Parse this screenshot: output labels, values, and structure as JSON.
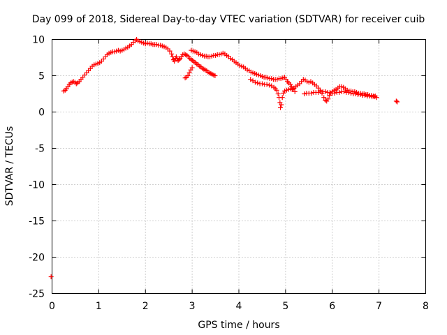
{
  "chart_data": {
    "type": "scatter",
    "title": "Day 099 of 2018, Sidereal Day-to-day VTEC variation (SDTVAR) for receiver cuib",
    "xlabel": "GPS time / hours",
    "ylabel": "SDTVAR / TECUs",
    "xlim": [
      0,
      8
    ],
    "ylim": [
      -25,
      10
    ],
    "xticks": [
      0,
      1,
      2,
      3,
      4,
      5,
      6,
      7,
      8
    ],
    "yticks": [
      -25,
      -20,
      -15,
      -10,
      -5,
      0,
      5,
      10
    ],
    "xtick_labels": [
      "0",
      "1",
      "2",
      "3",
      "4",
      "5",
      "6",
      "7",
      "8"
    ],
    "ytick_labels": [
      "-25",
      "-20",
      "-15",
      "-10",
      "-5",
      "0",
      "5",
      "10"
    ],
    "grid": true,
    "marker": "+",
    "color": "#ff0000",
    "series": [
      {
        "name": "SDTVAR",
        "points": [
          [
            -0.02,
            -22.7
          ],
          [
            0.25,
            2.9
          ],
          [
            0.28,
            3.0
          ],
          [
            0.31,
            3.2
          ],
          [
            0.34,
            3.5
          ],
          [
            0.37,
            3.8
          ],
          [
            0.4,
            4.0
          ],
          [
            0.43,
            4.1
          ],
          [
            0.46,
            4.2
          ],
          [
            0.49,
            4.1
          ],
          [
            0.52,
            3.9
          ],
          [
            0.55,
            4.0
          ],
          [
            0.58,
            4.2
          ],
          [
            0.62,
            4.5
          ],
          [
            0.66,
            4.8
          ],
          [
            0.7,
            5.1
          ],
          [
            0.74,
            5.4
          ],
          [
            0.78,
            5.7
          ],
          [
            0.82,
            6.0
          ],
          [
            0.86,
            6.3
          ],
          [
            0.9,
            6.5
          ],
          [
            0.94,
            6.6
          ],
          [
            0.98,
            6.7
          ],
          [
            1.02,
            6.8
          ],
          [
            1.06,
            7.0
          ],
          [
            1.1,
            7.3
          ],
          [
            1.14,
            7.6
          ],
          [
            1.18,
            7.9
          ],
          [
            1.22,
            8.1
          ],
          [
            1.26,
            8.2
          ],
          [
            1.3,
            8.3
          ],
          [
            1.34,
            8.3
          ],
          [
            1.38,
            8.4
          ],
          [
            1.42,
            8.5
          ],
          [
            1.46,
            8.4
          ],
          [
            1.5,
            8.5
          ],
          [
            1.54,
            8.6
          ],
          [
            1.58,
            8.8
          ],
          [
            1.62,
            8.9
          ],
          [
            1.66,
            9.1
          ],
          [
            1.7,
            9.3
          ],
          [
            1.74,
            9.6
          ],
          [
            1.78,
            9.8
          ],
          [
            1.81,
            10.0
          ],
          [
            1.84,
            9.8
          ],
          [
            1.88,
            9.7
          ],
          [
            1.92,
            9.6
          ],
          [
            1.96,
            9.5
          ],
          [
            2.0,
            9.4
          ],
          [
            2.04,
            9.5
          ],
          [
            2.08,
            9.4
          ],
          [
            2.12,
            9.4
          ],
          [
            2.16,
            9.3
          ],
          [
            2.2,
            9.3
          ],
          [
            2.24,
            9.3
          ],
          [
            2.28,
            9.2
          ],
          [
            2.32,
            9.2
          ],
          [
            2.36,
            9.1
          ],
          [
            2.4,
            9.0
          ],
          [
            2.44,
            8.9
          ],
          [
            2.48,
            8.7
          ],
          [
            2.52,
            8.4
          ],
          [
            2.56,
            8.0
          ],
          [
            2.58,
            7.6
          ],
          [
            2.6,
            7.2
          ],
          [
            2.62,
            7.0
          ],
          [
            2.64,
            7.4
          ],
          [
            2.66,
            7.6
          ],
          [
            2.68,
            7.3
          ],
          [
            2.7,
            7.1
          ],
          [
            2.72,
            7.2
          ],
          [
            2.74,
            7.4
          ],
          [
            2.77,
            7.6
          ],
          [
            2.8,
            7.9
          ],
          [
            2.83,
            8.0
          ],
          [
            2.86,
            7.9
          ],
          [
            2.89,
            7.8
          ],
          [
            2.92,
            7.6
          ],
          [
            2.95,
            7.4
          ],
          [
            2.98,
            7.2
          ],
          [
            3.01,
            7.1
          ],
          [
            3.04,
            6.9
          ],
          [
            3.07,
            6.8
          ],
          [
            3.1,
            6.6
          ],
          [
            3.13,
            6.5
          ],
          [
            3.16,
            6.3
          ],
          [
            3.19,
            6.2
          ],
          [
            3.22,
            6.0
          ],
          [
            3.25,
            5.9
          ],
          [
            3.28,
            5.8
          ],
          [
            3.31,
            5.7
          ],
          [
            3.34,
            5.5
          ],
          [
            3.37,
            5.4
          ],
          [
            3.4,
            5.3
          ],
          [
            3.43,
            5.2
          ],
          [
            3.46,
            5.1
          ],
          [
            3.49,
            5.0
          ],
          [
            2.85,
            4.7
          ],
          [
            2.88,
            4.8
          ],
          [
            2.91,
            5.0
          ],
          [
            2.94,
            5.4
          ],
          [
            2.97,
            5.8
          ],
          [
            3.0,
            6.1
          ],
          [
            2.98,
            8.5
          ],
          [
            3.02,
            8.4
          ],
          [
            3.06,
            8.3
          ],
          [
            3.1,
            8.2
          ],
          [
            3.14,
            8.0
          ],
          [
            3.18,
            7.9
          ],
          [
            3.22,
            7.8
          ],
          [
            3.26,
            7.7
          ],
          [
            3.3,
            7.7
          ],
          [
            3.34,
            7.6
          ],
          [
            3.38,
            7.6
          ],
          [
            3.42,
            7.7
          ],
          [
            3.46,
            7.8
          ],
          [
            3.5,
            7.8
          ],
          [
            3.54,
            7.9
          ],
          [
            3.58,
            7.9
          ],
          [
            3.62,
            8.0
          ],
          [
            3.66,
            8.1
          ],
          [
            3.7,
            8.0
          ],
          [
            3.74,
            7.8
          ],
          [
            3.78,
            7.6
          ],
          [
            3.82,
            7.4
          ],
          [
            3.86,
            7.2
          ],
          [
            3.9,
            7.0
          ],
          [
            3.94,
            6.8
          ],
          [
            3.98,
            6.6
          ],
          [
            4.02,
            6.4
          ],
          [
            4.06,
            6.3
          ],
          [
            4.1,
            6.2
          ],
          [
            4.14,
            6.0
          ],
          [
            4.18,
            5.8
          ],
          [
            4.22,
            5.7
          ],
          [
            4.26,
            5.5
          ],
          [
            4.3,
            5.4
          ],
          [
            4.34,
            5.3
          ],
          [
            4.38,
            5.2
          ],
          [
            4.42,
            5.1
          ],
          [
            4.46,
            5.0
          ],
          [
            4.5,
            4.9
          ],
          [
            4.54,
            4.8
          ],
          [
            4.58,
            4.8
          ],
          [
            4.62,
            4.7
          ],
          [
            4.66,
            4.6
          ],
          [
            4.7,
            4.6
          ],
          [
            4.74,
            4.5
          ],
          [
            4.78,
            4.5
          ],
          [
            4.82,
            4.5
          ],
          [
            4.86,
            4.6
          ],
          [
            4.9,
            4.6
          ],
          [
            4.94,
            4.7
          ],
          [
            4.98,
            4.8
          ],
          [
            5.01,
            4.5
          ],
          [
            5.04,
            4.2
          ],
          [
            5.07,
            4.0
          ],
          [
            5.1,
            3.8
          ],
          [
            5.13,
            3.5
          ],
          [
            5.16,
            3.2
          ],
          [
            5.2,
            2.8
          ],
          [
            4.25,
            4.5
          ],
          [
            4.3,
            4.3
          ],
          [
            4.35,
            4.1
          ],
          [
            4.4,
            4.0
          ],
          [
            4.45,
            3.9
          ],
          [
            4.5,
            3.9
          ],
          [
            4.55,
            3.8
          ],
          [
            4.6,
            3.8
          ],
          [
            4.65,
            3.7
          ],
          [
            4.7,
            3.6
          ],
          [
            4.75,
            3.4
          ],
          [
            4.78,
            3.2
          ],
          [
            4.81,
            3.0
          ],
          [
            4.84,
            2.5
          ],
          [
            4.86,
            2.0
          ],
          [
            4.88,
            1.3
          ],
          [
            4.89,
            0.6
          ],
          [
            4.91,
            1.0
          ],
          [
            4.93,
            2.0
          ],
          [
            4.95,
            2.6
          ],
          [
            4.98,
            2.9
          ],
          [
            5.02,
            3.0
          ],
          [
            5.06,
            3.1
          ],
          [
            5.1,
            3.2
          ],
          [
            5.14,
            3.1
          ],
          [
            5.18,
            3.3
          ],
          [
            5.22,
            3.5
          ],
          [
            5.26,
            3.7
          ],
          [
            5.3,
            3.9
          ],
          [
            5.34,
            4.2
          ],
          [
            5.38,
            4.5
          ],
          [
            5.42,
            4.4
          ],
          [
            5.46,
            4.2
          ],
          [
            5.5,
            4.1
          ],
          [
            5.54,
            4.2
          ],
          [
            5.58,
            4.0
          ],
          [
            5.62,
            3.8
          ],
          [
            5.66,
            3.6
          ],
          [
            5.7,
            3.3
          ],
          [
            5.74,
            3.0
          ],
          [
            5.78,
            2.6
          ],
          [
            5.82,
            2.0
          ],
          [
            5.85,
            1.6
          ],
          [
            5.88,
            1.5
          ],
          [
            5.91,
            1.8
          ],
          [
            5.94,
            2.3
          ],
          [
            5.97,
            2.6
          ],
          [
            6.0,
            2.8
          ],
          [
            6.04,
            3.0
          ],
          [
            6.08,
            3.1
          ],
          [
            6.12,
            3.3
          ],
          [
            6.16,
            3.5
          ],
          [
            6.2,
            3.5
          ],
          [
            6.24,
            3.4
          ],
          [
            6.28,
            3.2
          ],
          [
            6.32,
            3.0
          ],
          [
            6.36,
            2.9
          ],
          [
            6.4,
            2.9
          ],
          [
            6.44,
            2.8
          ],
          [
            6.48,
            2.8
          ],
          [
            6.52,
            2.7
          ],
          [
            6.56,
            2.6
          ],
          [
            6.6,
            2.6
          ],
          [
            6.64,
            2.5
          ],
          [
            6.68,
            2.5
          ],
          [
            6.72,
            2.4
          ],
          [
            6.76,
            2.4
          ],
          [
            6.8,
            2.3
          ],
          [
            6.84,
            2.3
          ],
          [
            6.88,
            2.2
          ],
          [
            6.92,
            2.2
          ],
          [
            5.4,
            2.5
          ],
          [
            5.45,
            2.6
          ],
          [
            5.5,
            2.6
          ],
          [
            5.55,
            2.6
          ],
          [
            5.6,
            2.7
          ],
          [
            5.65,
            2.7
          ],
          [
            5.7,
            2.7
          ],
          [
            5.75,
            2.8
          ],
          [
            5.8,
            2.8
          ],
          [
            5.85,
            2.8
          ],
          [
            5.9,
            2.7
          ],
          [
            5.95,
            2.7
          ],
          [
            6.0,
            2.6
          ],
          [
            6.05,
            2.6
          ],
          [
            6.1,
            2.7
          ],
          [
            6.15,
            2.7
          ],
          [
            6.2,
            2.8
          ],
          [
            6.25,
            2.8
          ],
          [
            6.3,
            2.7
          ],
          [
            6.35,
            2.7
          ],
          [
            6.4,
            2.6
          ],
          [
            6.45,
            2.5
          ],
          [
            6.5,
            2.5
          ],
          [
            6.55,
            2.4
          ],
          [
            6.6,
            2.4
          ],
          [
            6.65,
            2.3
          ],
          [
            6.7,
            2.3
          ],
          [
            6.75,
            2.2
          ],
          [
            6.8,
            2.2
          ],
          [
            6.85,
            2.1
          ],
          [
            6.9,
            2.1
          ],
          [
            6.95,
            2.0
          ],
          [
            7.37,
            1.5
          ],
          [
            7.39,
            1.4
          ]
        ]
      }
    ]
  }
}
